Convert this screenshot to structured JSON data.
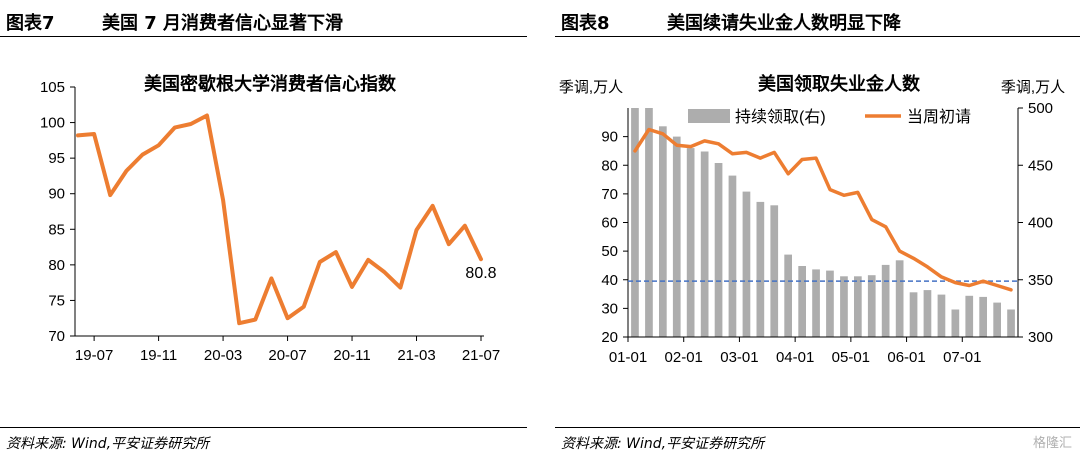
{
  "left_panel": {
    "figure_label": "图表7",
    "header_title": "美国 7 月消费者信心显著下滑",
    "source": "资料来源: Wind,平安证券研究所"
  },
  "right_panel": {
    "figure_label": "图表8",
    "header_title": "美国续请失业金人数明显下降",
    "source": "资料来源: Wind,平安证券研究所"
  },
  "watermark": "格隆汇",
  "chart_data": [
    {
      "type": "line",
      "title": "美国密歇根大学消费者信心指数",
      "x_tick_labels": [
        "19-07",
        "19-11",
        "20-03",
        "20-07",
        "20-11",
        "21-03",
        "21-07"
      ],
      "y_ticks": [
        70,
        75,
        80,
        85,
        90,
        95,
        100,
        105
      ],
      "ylim": [
        70,
        105
      ],
      "color": "#ED7D31",
      "x": [
        "19-06",
        "19-07",
        "19-08",
        "19-09",
        "19-10",
        "19-11",
        "19-12",
        "20-01",
        "20-02",
        "20-03",
        "20-04",
        "20-05",
        "20-06",
        "20-07",
        "20-08",
        "20-09",
        "20-10",
        "20-11",
        "20-12",
        "21-01",
        "21-02",
        "21-03",
        "21-04",
        "21-05",
        "21-06",
        "21-07"
      ],
      "values": [
        98.2,
        98.4,
        89.8,
        93.2,
        95.5,
        96.8,
        99.3,
        99.8,
        101.0,
        89.1,
        71.8,
        72.3,
        78.1,
        72.5,
        74.1,
        80.4,
        81.8,
        76.9,
        80.7,
        79.0,
        76.8,
        84.9,
        88.3,
        82.9,
        85.5,
        80.8
      ],
      "end_label": "80.8"
    },
    {
      "type": "bar+line",
      "title": "美国领取失业金人数",
      "left_axis_unit": "季调,万人",
      "right_axis_unit": "季调,万人",
      "y_left_ticks": [
        20,
        30,
        40,
        50,
        60,
        70,
        80,
        90
      ],
      "ylim_left": [
        20,
        100
      ],
      "y_right_ticks": [
        300,
        350,
        400,
        450,
        500
      ],
      "ylim_right": [
        300,
        500
      ],
      "x_tick_labels": [
        "01-01",
        "02-01",
        "03-01",
        "04-01",
        "05-01",
        "06-01",
        "07-01"
      ],
      "legend": {
        "bar": "持续领取(右)",
        "line": "当周初请"
      },
      "bar_color": "#ADADAD",
      "line_color": "#ED7D31",
      "reference_line": {
        "value_left": 39.5,
        "color": "#4472C4",
        "style": "dashed"
      },
      "series": [
        {
          "name": "持续领取(右)",
          "axis": "right",
          "values": [
            510,
            503,
            484,
            475,
            465,
            462,
            452,
            441,
            427,
            418,
            415,
            372,
            362,
            359,
            358,
            353,
            353,
            354,
            363,
            367,
            339,
            341,
            337,
            324,
            336,
            335,
            330,
            324
          ]
        },
        {
          "name": "当周初请",
          "axis": "left",
          "values": [
            85,
            92.5,
            91,
            87,
            86.5,
            88.5,
            87.5,
            84,
            84.5,
            82.5,
            84.5,
            77,
            82,
            82.5,
            71.5,
            69.5,
            70.5,
            61,
            58.5,
            50,
            47.5,
            44.5,
            41,
            39,
            38,
            39.5,
            38,
            36.5
          ]
        }
      ]
    }
  ]
}
